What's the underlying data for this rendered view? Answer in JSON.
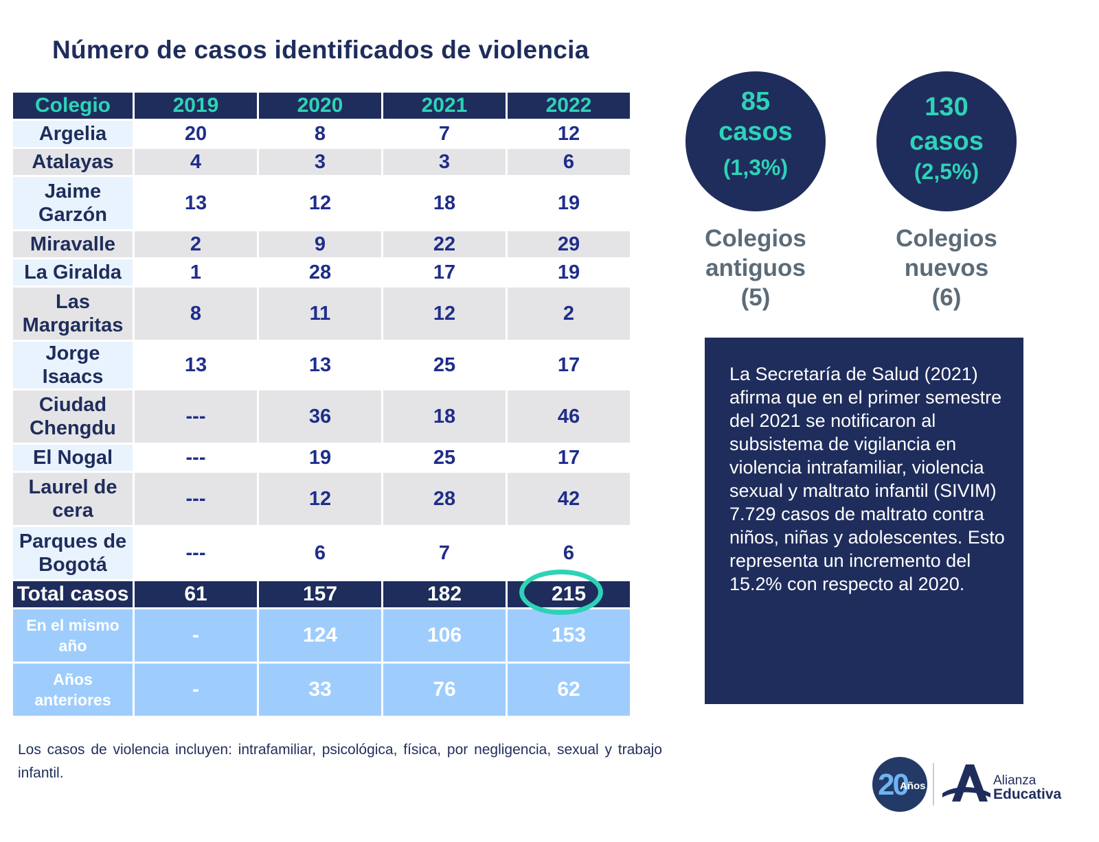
{
  "title": "Número de casos identificados de violencia",
  "chart_data": {
    "type": "table",
    "columns": [
      "Colegio",
      "2019",
      "2020",
      "2021",
      "2022"
    ],
    "rows": [
      {
        "colegio": [
          "Argelia"
        ],
        "values": [
          "20",
          "8",
          "7",
          "12"
        ]
      },
      {
        "colegio": [
          "Atalayas"
        ],
        "values": [
          "4",
          "3",
          "3",
          "6"
        ]
      },
      {
        "colegio": [
          "Jaime",
          "Garzón"
        ],
        "values": [
          "13",
          "12",
          "18",
          "19"
        ]
      },
      {
        "colegio": [
          "Miravalle"
        ],
        "values": [
          "2",
          "9",
          "22",
          "29"
        ]
      },
      {
        "colegio": [
          "La Giralda"
        ],
        "values": [
          "1",
          "28",
          "17",
          "19"
        ]
      },
      {
        "colegio": [
          "Las",
          "Margaritas"
        ],
        "values": [
          "8",
          "11",
          "12",
          "2"
        ]
      },
      {
        "colegio": [
          "Jorge",
          "Isaacs"
        ],
        "values": [
          "13",
          "13",
          "25",
          "17"
        ]
      },
      {
        "colegio": [
          "Ciudad",
          "Chengdu"
        ],
        "values": [
          "---",
          "36",
          "18",
          "46"
        ]
      },
      {
        "colegio": [
          "El Nogal"
        ],
        "values": [
          "---",
          "19",
          "25",
          "17"
        ]
      },
      {
        "colegio": [
          "Laurel de",
          "cera"
        ],
        "values": [
          "---",
          "12",
          "28",
          "42"
        ]
      },
      {
        "colegio": [
          "Parques de",
          "Bogotá"
        ],
        "values": [
          "---",
          "6",
          "7",
          "6"
        ]
      }
    ],
    "total": {
      "label": "Total casos",
      "values": [
        "61",
        "157",
        "182",
        "215"
      ]
    },
    "breakdown": [
      {
        "label": [
          "En el mismo",
          "año"
        ],
        "values": [
          "-",
          "124",
          "106",
          "153"
        ]
      },
      {
        "label": [
          "Años",
          "anteriores"
        ],
        "values": [
          "-",
          "33",
          "76",
          "62"
        ]
      }
    ]
  },
  "circles": [
    {
      "count": "85",
      "unit": "casos",
      "percent": "(1,3%)",
      "label": [
        "Colegios",
        "antiguos",
        "(5)"
      ]
    },
    {
      "count": "130",
      "unit": "casos",
      "percent": "(2,5%)",
      "label": [
        "Colegios",
        "nuevos",
        "(6)"
      ]
    }
  ],
  "info_text": "La Secretaría de Salud (2021) afirma que en el primer semestre del 2021 se notificaron al subsistema de vigilancia en violencia intrafamiliar, violencia sexual y maltrato infantil (SIVIM) 7.729 casos de maltrato contra niños, niñas y adolescentes. Esto representa un incremento del 15.2% con respecto al 2020.",
  "footnote": "Los casos de violencia  incluyen: intrafamiliar, psicológica, física, por negligencia, sexual y trabajo infantil.",
  "logo": {
    "anniversary_number": "20",
    "anniversary_word": "Años",
    "brand_line1": "Alianza",
    "brand_line2": "Educativa"
  },
  "colors": {
    "navy": "#1f2d5c",
    "teal": "#2ed3b7",
    "light_blue": "#9ecdfd",
    "gray_row": "#e4e4e6",
    "label_gray": "#5b6b78"
  }
}
